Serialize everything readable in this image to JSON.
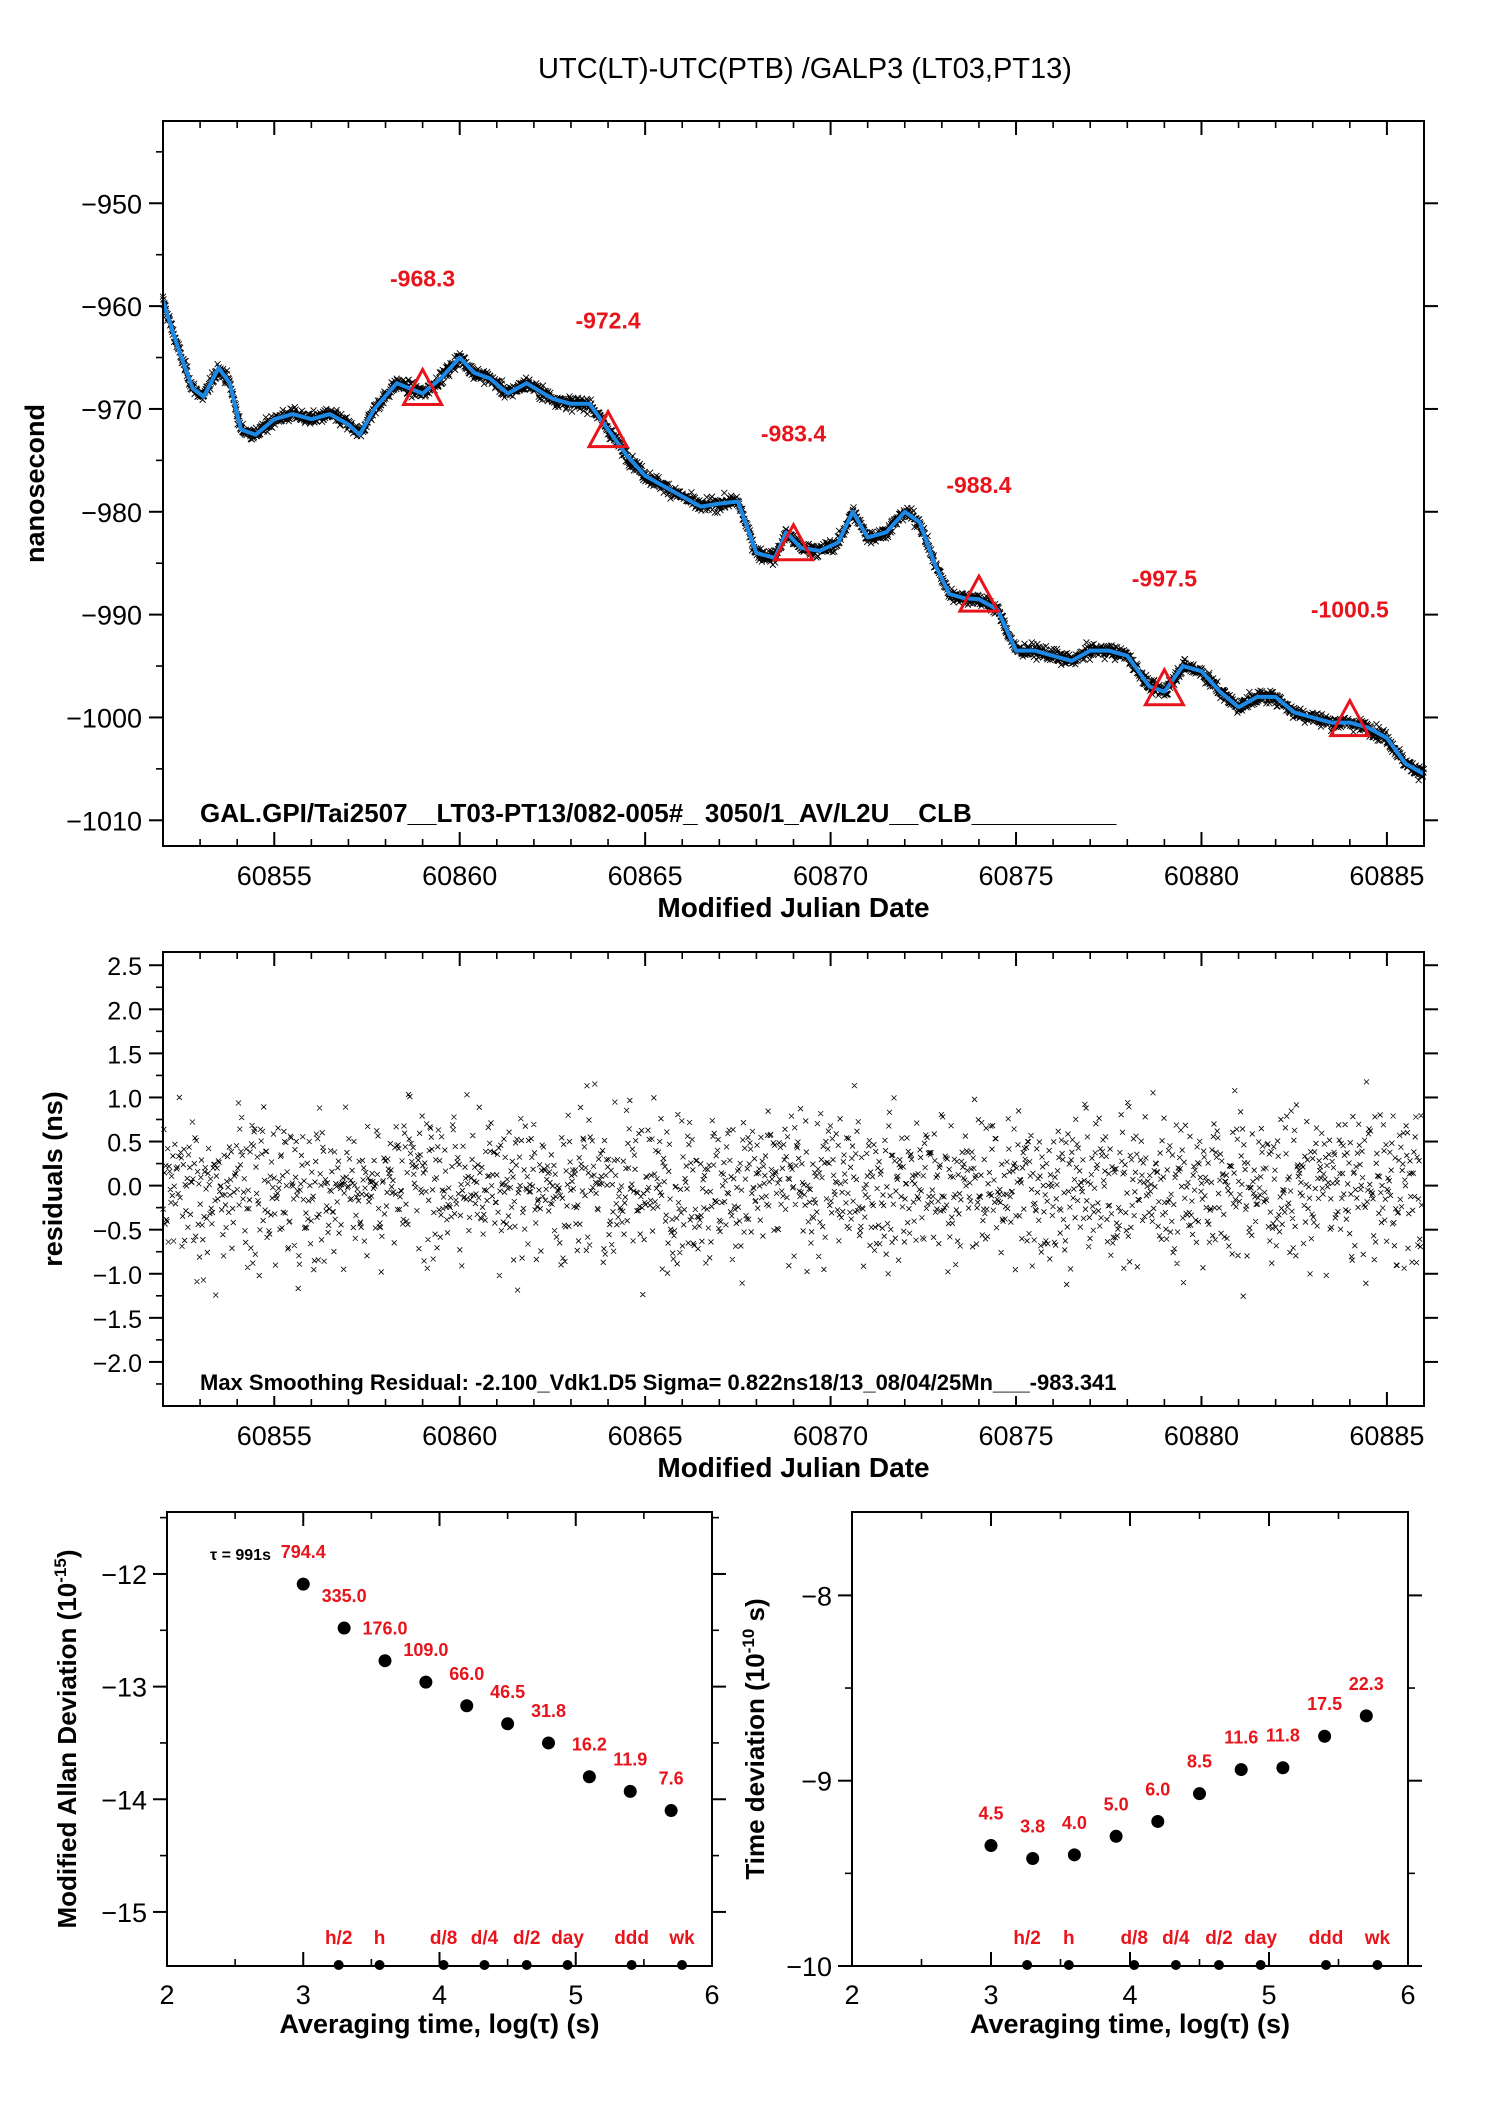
{
  "title": "UTC(LT)-UTC(PTB)  /GALP3  (LT03,PT13)",
  "chart_data": [
    {
      "id": "time_series",
      "type": "scatter",
      "xlabel": "Modified Julian Date",
      "ylabel": "nanosecond",
      "xlim": [
        60852,
        60886
      ],
      "ylim": [
        -1012.5,
        -942
      ],
      "xticks": [
        60855,
        60860,
        60865,
        60870,
        60875,
        60880,
        60885
      ],
      "yticks": [
        -950,
        -960,
        -970,
        -980,
        -990,
        -1000,
        -1010
      ],
      "annotation": "GAL.GPI/Tai2507__LT03-PT13/082-005#_  3050/1_AV/L2U__CLB__________",
      "series": [
        {
          "marker": "x",
          "color": "#000000",
          "smooth_color": "#1e88e5",
          "smooth": [
            [
              60852.0,
              -959.5
            ],
            [
              60852.4,
              -964.0
            ],
            [
              60852.8,
              -968.0
            ],
            [
              60853.1,
              -968.8
            ],
            [
              60853.5,
              -966.0
            ],
            [
              60853.8,
              -967.5
            ],
            [
              60854.1,
              -972.0
            ],
            [
              60854.5,
              -972.5
            ],
            [
              60855.0,
              -971.0
            ],
            [
              60855.5,
              -970.5
            ],
            [
              60856.0,
              -971.0
            ],
            [
              60856.5,
              -970.5
            ],
            [
              60857.0,
              -971.5
            ],
            [
              60857.3,
              -972.5
            ],
            [
              60857.7,
              -970.0
            ],
            [
              60858.3,
              -967.5
            ],
            [
              60859.0,
              -968.5
            ],
            [
              60859.5,
              -967.0
            ],
            [
              60860.0,
              -965.0
            ],
            [
              60860.4,
              -966.5
            ],
            [
              60860.8,
              -967.0
            ],
            [
              60861.3,
              -968.5
            ],
            [
              60861.8,
              -967.5
            ],
            [
              60862.5,
              -969.0
            ],
            [
              60863.0,
              -969.5
            ],
            [
              60863.5,
              -969.5
            ],
            [
              60864.0,
              -972.0
            ],
            [
              60864.5,
              -974.5
            ],
            [
              60865.0,
              -976.5
            ],
            [
              60865.5,
              -977.5
            ],
            [
              60866.0,
              -978.5
            ],
            [
              60866.5,
              -979.5
            ],
            [
              60867.0,
              -979.2
            ],
            [
              60867.5,
              -979.0
            ],
            [
              60868.0,
              -984.0
            ],
            [
              60868.5,
              -984.5
            ],
            [
              60868.8,
              -982.0
            ],
            [
              60869.2,
              -983.5
            ],
            [
              60869.7,
              -983.8
            ],
            [
              60870.2,
              -983.0
            ],
            [
              60870.6,
              -980.0
            ],
            [
              60871.0,
              -982.5
            ],
            [
              60871.5,
              -982.0
            ],
            [
              60872.0,
              -980.0
            ],
            [
              60872.4,
              -981.0
            ],
            [
              60872.8,
              -985.0
            ],
            [
              60873.2,
              -988.0
            ],
            [
              60873.6,
              -988.4
            ],
            [
              60874.0,
              -988.5
            ],
            [
              60874.5,
              -989.5
            ],
            [
              60875.0,
              -993.5
            ],
            [
              60875.5,
              -993.5
            ],
            [
              60876.0,
              -994.0
            ],
            [
              60876.5,
              -994.5
            ],
            [
              60877.0,
              -993.5
            ],
            [
              60877.5,
              -993.5
            ],
            [
              60878.0,
              -994.0
            ],
            [
              60878.6,
              -997.0
            ],
            [
              60879.0,
              -997.5
            ],
            [
              60879.5,
              -995.0
            ],
            [
              60880.0,
              -995.5
            ],
            [
              60880.5,
              -997.5
            ],
            [
              60881.0,
              -999.0
            ],
            [
              60881.5,
              -998.0
            ],
            [
              60882.0,
              -998.0
            ],
            [
              60882.5,
              -999.5
            ],
            [
              60883.0,
              -1000.0
            ],
            [
              60883.5,
              -1000.5
            ],
            [
              60884.0,
              -1000.5
            ],
            [
              60884.5,
              -1001.0
            ],
            [
              60885.0,
              -1002.0
            ],
            [
              60885.5,
              -1004.5
            ],
            [
              60886.0,
              -1005.5
            ]
          ],
          "scatter_spread_ns": 0.8
        }
      ],
      "markers": [
        {
          "x": 60859,
          "y": -968.3,
          "label": "-968.3"
        },
        {
          "x": 60864,
          "y": -972.4,
          "label": "-972.4"
        },
        {
          "x": 60869,
          "y": -983.4,
          "label": "-983.4"
        },
        {
          "x": 60874,
          "y": -988.4,
          "label": "-988.4"
        },
        {
          "x": 60879,
          "y": -997.5,
          "label": "-997.5"
        },
        {
          "x": 60884,
          "y": -1000.5,
          "label": "-1000.5"
        }
      ]
    },
    {
      "id": "residuals",
      "type": "scatter",
      "xlabel": "Modified Julian Date",
      "ylabel": "residuals (ns)",
      "xlim": [
        60852,
        60886
      ],
      "ylim": [
        -2.5,
        2.65
      ],
      "xticks": [
        60855,
        60860,
        60865,
        60870,
        60875,
        60880,
        60885
      ],
      "yticks": [
        2.5,
        2.0,
        1.5,
        1.0,
        0.5,
        0.0,
        -0.5,
        -1.0,
        -1.5,
        -2.0
      ],
      "ytick_labels": [
        "2.5",
        "2.0",
        "1.5",
        "1.0",
        "0.5",
        "0.0",
        "−0.5",
        "−1.0",
        "−1.5",
        "−2.0"
      ],
      "annotation": "Max Smoothing Residual: -2.100_Vdk1.D5  Sigma= 0.822ns18/13_08/04/25Mn___-983.341",
      "sigma_ns": 0.822,
      "max_residual_ns": -2.1
    },
    {
      "id": "mdev",
      "type": "scatter",
      "xlabel": "Averaging time, log(τ) (s)",
      "ylabel": "Modified Allan Deviation (10",
      "ylabel_sup": "-15",
      "ylabel_end": ")",
      "xlim": [
        2,
        6
      ],
      "ylim": [
        -15.48,
        -11.45
      ],
      "xticks": [
        2,
        3,
        4,
        5,
        6
      ],
      "yticks": [
        -12,
        -13,
        -14,
        -15
      ],
      "note": "τ = 991s",
      "points": [
        {
          "x": 3.0,
          "y": -12.09,
          "label": "794.4"
        },
        {
          "x": 3.3,
          "y": -12.48,
          "label": "335.0"
        },
        {
          "x": 3.6,
          "y": -12.77,
          "label": "176.0"
        },
        {
          "x": 3.9,
          "y": -12.96,
          "label": "109.0"
        },
        {
          "x": 4.2,
          "y": -13.17,
          "label": "66.0"
        },
        {
          "x": 4.5,
          "y": -13.33,
          "label": "46.5"
        },
        {
          "x": 4.8,
          "y": -13.5,
          "label": "31.8"
        },
        {
          "x": 5.1,
          "y": -13.8,
          "label": "16.2"
        },
        {
          "x": 5.4,
          "y": -13.93,
          "label": "11.9"
        },
        {
          "x": 5.7,
          "y": -14.1,
          "label": "7.6"
        }
      ],
      "time_marks": [
        {
          "x": 3.26,
          "label": "h/2"
        },
        {
          "x": 3.56,
          "label": "h"
        },
        {
          "x": 4.03,
          "label": "d/8"
        },
        {
          "x": 4.33,
          "label": "d/4"
        },
        {
          "x": 4.64,
          "label": "d/2"
        },
        {
          "x": 4.94,
          "label": "day"
        },
        {
          "x": 5.41,
          "label": "ddd"
        },
        {
          "x": 5.78,
          "label": "wk"
        }
      ]
    },
    {
      "id": "tdev",
      "type": "scatter",
      "xlabel": "Averaging time, log(τ) (s)",
      "ylabel": "Time deviation (10",
      "ylabel_sup": "-10",
      "ylabel_end": " s)",
      "xlim": [
        2,
        6
      ],
      "ylim": [
        -10.0,
        -7.55
      ],
      "xticks": [
        2,
        3,
        4,
        5,
        6
      ],
      "yticks": [
        -8,
        -9,
        -10
      ],
      "points": [
        {
          "x": 3.0,
          "y": -9.35,
          "label": "4.5"
        },
        {
          "x": 3.3,
          "y": -9.42,
          "label": "3.8"
        },
        {
          "x": 3.6,
          "y": -9.4,
          "label": "4.0"
        },
        {
          "x": 3.9,
          "y": -9.3,
          "label": "5.0"
        },
        {
          "x": 4.2,
          "y": -9.22,
          "label": "6.0"
        },
        {
          "x": 4.5,
          "y": -9.07,
          "label": "8.5"
        },
        {
          "x": 4.8,
          "y": -8.94,
          "label": "11.6"
        },
        {
          "x": 5.1,
          "y": -8.93,
          "label": "11.8"
        },
        {
          "x": 5.4,
          "y": -8.76,
          "label": "17.5"
        },
        {
          "x": 5.7,
          "y": -8.65,
          "label": "22.3"
        }
      ],
      "time_marks": [
        {
          "x": 3.26,
          "label": "h/2"
        },
        {
          "x": 3.56,
          "label": "h"
        },
        {
          "x": 4.03,
          "label": "d/8"
        },
        {
          "x": 4.33,
          "label": "d/4"
        },
        {
          "x": 4.64,
          "label": "d/2"
        },
        {
          "x": 4.94,
          "label": "day"
        },
        {
          "x": 5.41,
          "label": "ddd"
        },
        {
          "x": 5.78,
          "label": "wk"
        }
      ]
    }
  ]
}
